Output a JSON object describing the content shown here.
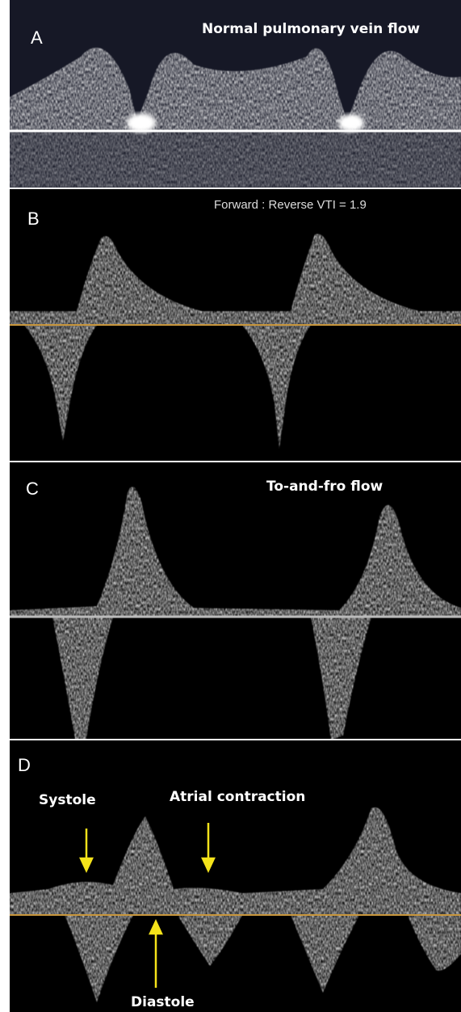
{
  "panels": [
    {
      "label": "A",
      "caption": "Normal pulmonary vein flow"
    },
    {
      "label": "B",
      "caption": "Forward : Reverse VTI = 1.9"
    },
    {
      "label": "C",
      "caption": "To-and-fro flow"
    },
    {
      "label": "D",
      "annotations": [
        "Systole",
        "Atrial contraction",
        "Diastole"
      ]
    }
  ]
}
